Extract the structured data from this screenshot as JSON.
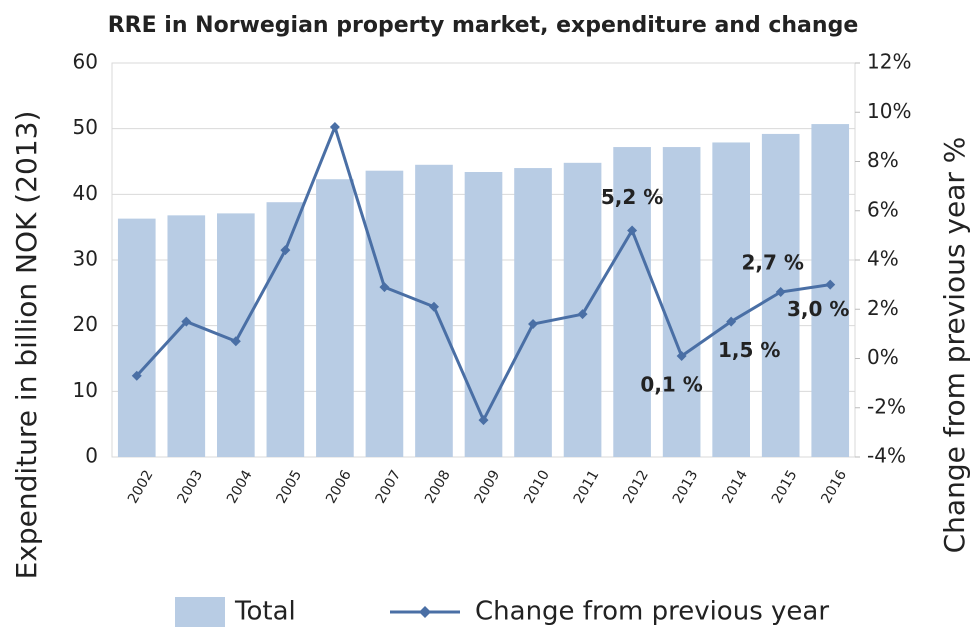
{
  "chart_data": {
    "type": "combo",
    "title": "RRE in Norwegian property market, expenditure and change",
    "y_label": "Expenditure in billion NOK (2013)",
    "y2_label": "Change from previous year %",
    "categories": [
      "2002",
      "2003",
      "2004",
      "2005",
      "2006",
      "2007",
      "2008",
      "2009",
      "2010",
      "2011",
      "2012",
      "2013",
      "2014",
      "2015",
      "2016"
    ],
    "series": [
      {
        "name": "Total",
        "type": "bar",
        "color": "#b8cce4",
        "values": [
          36.3,
          36.8,
          37.1,
          38.8,
          42.3,
          43.6,
          44.5,
          43.4,
          44.0,
          44.8,
          47.2,
          47.2,
          47.9,
          49.2,
          50.7
        ]
      },
      {
        "name": "Change from previous year",
        "type": "line",
        "axis": "y2",
        "color": "#4a6fa5",
        "values": [
          -0.7,
          1.5,
          0.7,
          4.4,
          9.4,
          2.9,
          2.1,
          -2.5,
          1.4,
          1.8,
          5.2,
          0.1,
          1.5,
          2.7,
          3.0
        ],
        "value_labels": [
          null,
          null,
          null,
          null,
          null,
          null,
          null,
          null,
          null,
          null,
          "5,2 %",
          "0,1 %",
          "1,5 %",
          "2,7 %",
          "3,0 %"
        ]
      }
    ],
    "ylim": [
      0,
      60
    ],
    "yticks": [
      0,
      10,
      20,
      30,
      40,
      50,
      60
    ],
    "y2lim": [
      -4,
      12
    ],
    "y2ticks": [
      {
        "value": -4,
        "label": "-4%"
      },
      {
        "value": -2,
        "label": "-2%"
      },
      {
        "value": 0,
        "label": "0%"
      },
      {
        "value": 2,
        "label": "2%"
      },
      {
        "value": 4,
        "label": "4%"
      },
      {
        "value": 6,
        "label": "6%"
      },
      {
        "value": 8,
        "label": "8%"
      },
      {
        "value": 10,
        "label": "10%"
      },
      {
        "value": 12,
        "label": "12%"
      }
    ],
    "grid": true,
    "legend": "bottom"
  }
}
